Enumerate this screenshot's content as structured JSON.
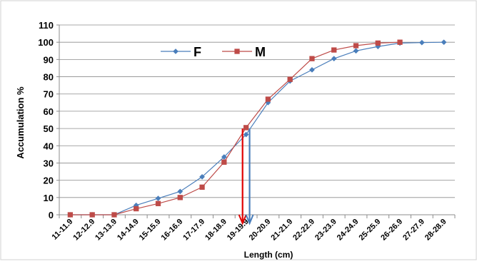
{
  "chart_data": {
    "type": "line",
    "title": "",
    "xlabel": "Length (cm)",
    "ylabel": "Accumulation %",
    "ylim": [
      0,
      110
    ],
    "yticks": [
      0,
      10,
      20,
      30,
      40,
      50,
      60,
      70,
      80,
      90,
      100,
      110
    ],
    "grid": true,
    "legend_position": "top-left",
    "categories": [
      "11-11.9",
      "12-12.9",
      "13-13.9",
      "14-14.9",
      "15-15.9",
      "16-16.9",
      "17-17.9",
      "18-18.9",
      "19-19.9",
      "20-20.9",
      "21-21.9",
      "22-22.9",
      "23-23.9",
      "24-24.9",
      "25-25.9",
      "26-26.9",
      "27-27.9",
      "28-28.9"
    ],
    "series": [
      {
        "name": "F",
        "color": "#4a7ebb",
        "marker": "diamond",
        "values": [
          0,
          0,
          0,
          5.5,
          9.5,
          13.5,
          22,
          33.5,
          46.5,
          65,
          77.5,
          84,
          90.5,
          95,
          97.5,
          99.5,
          99.8,
          100
        ]
      },
      {
        "name": "M",
        "color": "#be4b48",
        "marker": "square",
        "values": [
          0,
          0,
          0,
          3.5,
          6.5,
          10,
          16,
          30.5,
          50.5,
          67,
          78.5,
          90.5,
          95.5,
          98,
          99.5,
          100,
          null,
          null
        ]
      }
    ],
    "annotations": [
      {
        "type": "down-arrow",
        "color": "#e00000",
        "x_category": "19-19.9",
        "x_offset": -0.16,
        "from_y": 50
      },
      {
        "type": "down-arrow",
        "color": "#4a7ebb",
        "x_category": "19-19.9",
        "x_offset": 0.16,
        "from_y": 50
      }
    ]
  }
}
